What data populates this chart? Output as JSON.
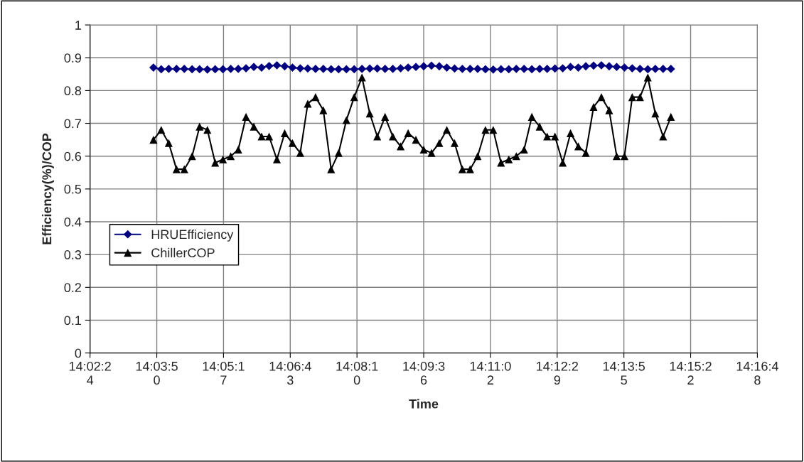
{
  "chart_data": {
    "type": "line",
    "xlabel": "Time",
    "ylabel": "Efficiency(%)/COP",
    "x": [
      14.0628,
      14.0656,
      14.0683,
      14.0711,
      14.0739,
      14.0767,
      14.0794,
      14.0822,
      14.085,
      14.0878,
      14.0906,
      14.0933,
      14.0961,
      14.0989,
      14.1017,
      14.1044,
      14.1072,
      14.11,
      14.1128,
      14.1156,
      14.1183,
      14.1211,
      14.1239,
      14.1267,
      14.1294,
      14.1322,
      14.135,
      14.1378,
      14.1406,
      14.1433,
      14.1461,
      14.1489,
      14.1517,
      14.1544,
      14.1572,
      14.16,
      14.1628,
      14.1656,
      14.1683,
      14.1711,
      14.1739,
      14.1767,
      14.1794,
      14.1822,
      14.185,
      14.1878,
      14.1906,
      14.1933,
      14.1961,
      14.1989,
      14.2017,
      14.2044,
      14.2072,
      14.21,
      14.2128,
      14.2156,
      14.2183,
      14.2211,
      14.2239,
      14.2267,
      14.2294,
      14.2322,
      14.235,
      14.2378,
      14.2406,
      14.2433,
      14.2461,
      14.2489
    ],
    "series": [
      {
        "name": "HRUEfficiency",
        "color": "#000080",
        "marker": "diamond",
        "values": [
          0.87,
          0.865,
          0.866,
          0.866,
          0.866,
          0.865,
          0.865,
          0.864,
          0.865,
          0.865,
          0.866,
          0.866,
          0.868,
          0.872,
          0.87,
          0.875,
          0.877,
          0.874,
          0.87,
          0.868,
          0.867,
          0.866,
          0.866,
          0.865,
          0.865,
          0.865,
          0.865,
          0.866,
          0.867,
          0.867,
          0.866,
          0.866,
          0.868,
          0.87,
          0.872,
          0.874,
          0.876,
          0.874,
          0.87,
          0.867,
          0.866,
          0.866,
          0.866,
          0.865,
          0.864,
          0.865,
          0.865,
          0.866,
          0.866,
          0.865,
          0.866,
          0.866,
          0.867,
          0.868,
          0.872,
          0.87,
          0.874,
          0.876,
          0.877,
          0.874,
          0.872,
          0.87,
          0.868,
          0.866,
          0.865,
          0.866,
          0.866,
          0.866
        ]
      },
      {
        "name": "ChillerCOP",
        "color": "#000000",
        "marker": "triangle",
        "values": [
          0.65,
          0.68,
          0.64,
          0.56,
          0.56,
          0.6,
          0.69,
          0.68,
          0.58,
          0.59,
          0.6,
          0.62,
          0.72,
          0.69,
          0.66,
          0.66,
          0.59,
          0.67,
          0.64,
          0.61,
          0.76,
          0.78,
          0.74,
          0.56,
          0.61,
          0.71,
          0.78,
          0.84,
          0.73,
          0.66,
          0.72,
          0.66,
          0.63,
          0.67,
          0.65,
          0.62,
          0.61,
          0.64,
          0.68,
          0.64,
          0.56,
          0.56,
          0.6,
          0.68,
          0.68,
          0.58,
          0.59,
          0.6,
          0.62,
          0.72,
          0.69,
          0.66,
          0.66,
          0.58,
          0.67,
          0.63,
          0.61,
          0.75,
          0.78,
          0.74,
          0.6,
          0.6,
          0.78,
          0.78,
          0.84,
          0.73,
          0.66,
          0.72
        ]
      }
    ],
    "xlim": [
      14.04,
      14.28
    ],
    "xticks": [
      {
        "value": 14.04,
        "label": "14:02:24"
      },
      {
        "value": 14.064,
        "label": "14:03:50"
      },
      {
        "value": 14.088,
        "label": "14:05:17"
      },
      {
        "value": 14.112,
        "label": "14:06:43"
      },
      {
        "value": 14.136,
        "label": "14:08:10"
      },
      {
        "value": 14.16,
        "label": "14:09:36"
      },
      {
        "value": 14.184,
        "label": "14:11:02"
      },
      {
        "value": 14.208,
        "label": "14:12:29"
      },
      {
        "value": 14.232,
        "label": "14:13:55"
      },
      {
        "value": 14.256,
        "label": "14:15:22"
      },
      {
        "value": 14.28,
        "label": "14:16:48"
      }
    ],
    "ylim": [
      0,
      1
    ],
    "yticks": [
      0,
      0.1,
      0.2,
      0.3,
      0.4,
      0.5,
      0.6,
      0.7,
      0.8,
      0.9,
      1
    ],
    "grid": true,
    "legend": "left",
    "line_style": "solid"
  }
}
